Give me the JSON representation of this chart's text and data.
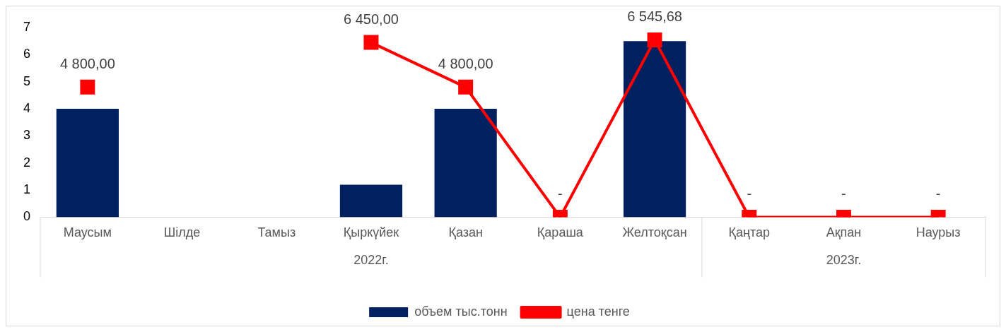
{
  "chart_data": {
    "type": "bar",
    "categories": [
      "Маусым",
      "Шілде",
      "Тамыз",
      "Қыркүйек",
      "Қазан",
      "Қараша",
      "Желтоқсан",
      "Қаңтар",
      "Ақпан",
      "Наурыз"
    ],
    "series": [
      {
        "name": "объем тыс.тонн",
        "color": "#002060",
        "values": [
          4,
          null,
          null,
          1.2,
          4,
          null,
          6.5,
          null,
          null,
          null
        ]
      },
      {
        "name": "цена тенге",
        "type": "line",
        "axis": "y2",
        "color": "#ff0000",
        "marker": "square",
        "line_style": "solid",
        "values": [
          4800,
          null,
          null,
          6450,
          4800,
          0,
          6545.68,
          0,
          0,
          0
        ],
        "value_labels": [
          "4 800,00",
          null,
          null,
          "6 450,00",
          "4 800,00",
          "-",
          "6 545,68",
          "-",
          "-",
          "-"
        ]
      }
    ],
    "ylim": [
      0,
      7
    ],
    "yticks": [
      0,
      1,
      2,
      3,
      4,
      5,
      6,
      7
    ],
    "annotations": [
      "2022г.",
      "2023г."
    ],
    "grid": false,
    "legend": "bottom"
  }
}
